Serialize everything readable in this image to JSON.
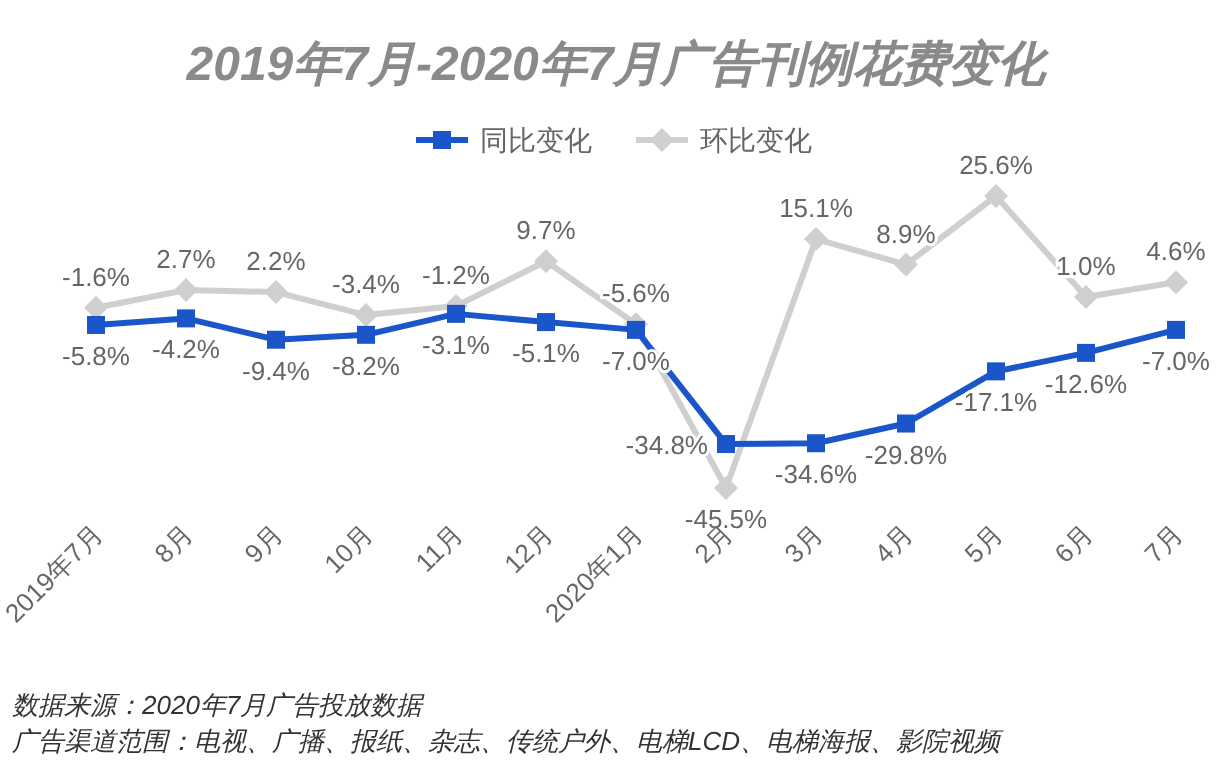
{
  "chart_data": {
    "type": "line",
    "title": "2019年7月-2020年7月广告刊例花费变化",
    "categories": [
      "2019年7月",
      "8月",
      "9月",
      "10月",
      "11月",
      "12月",
      "2020年1月",
      "2月",
      "3月",
      "4月",
      "5月",
      "6月",
      "7月"
    ],
    "series": [
      {
        "name": "同比变化",
        "color": "#1a56c9",
        "marker": "square",
        "values": [
          -5.8,
          -4.2,
          -9.4,
          -8.2,
          -3.1,
          -5.1,
          -7.0,
          -34.8,
          -34.6,
          -29.8,
          -17.1,
          -12.6,
          -7.0
        ],
        "value_labels": [
          "-5.8%",
          "-4.2%",
          "-9.4%",
          "-8.2%",
          "-3.1%",
          "-5.1%",
          "-7.0%",
          "-34.8%",
          "-34.6%",
          "-29.8%",
          "-17.1%",
          "-12.6%",
          "-7.0%"
        ]
      },
      {
        "name": "环比变化",
        "color": "#cfcfcf",
        "marker": "diamond",
        "values": [
          -1.6,
          2.7,
          2.2,
          -3.4,
          -1.2,
          9.7,
          -5.6,
          -45.5,
          15.1,
          8.9,
          25.6,
          1.0,
          4.6
        ],
        "value_labels": [
          "-1.6%",
          "2.7%",
          "2.2%",
          "-3.4%",
          "-1.2%",
          "9.7%",
          "-5.6%",
          "-45.5%",
          "15.1%",
          "8.9%",
          "25.6%",
          "1.0%",
          "4.6%"
        ]
      }
    ],
    "legend": "top",
    "annotations": [
      "数据来源：2020年7月广告投放数据",
      "广告渠道范围：电视、广播、报纸、杂志、传统户外、电梯LCD、电梯海报、影院视频"
    ]
  }
}
